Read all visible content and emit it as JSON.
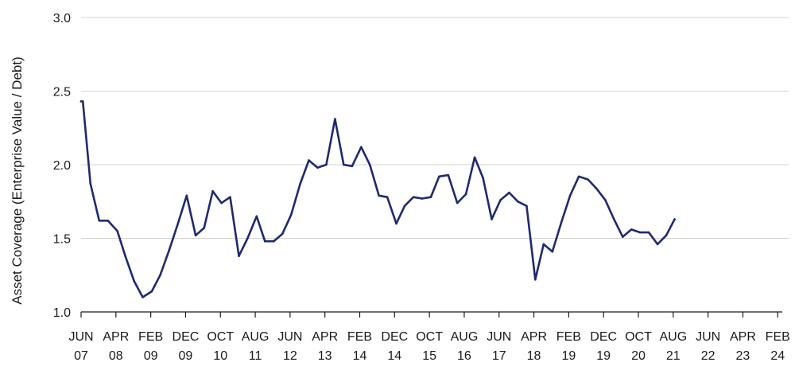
{
  "chart_data": {
    "type": "line",
    "title": "",
    "xlabel": "",
    "ylabel": "Asset Coverage (Enterprise Value / Debt)",
    "ylim": [
      1.0,
      3.0
    ],
    "yticks": [
      1.0,
      1.5,
      2.0,
      2.5,
      3.0
    ],
    "ytick_labels": [
      "1.0",
      "1.5",
      "2.0",
      "2.5",
      "3.0"
    ],
    "grid": "horizontal",
    "xtick_labels": [
      {
        "month": "JUN",
        "year": "07"
      },
      {
        "month": "APR",
        "year": "08"
      },
      {
        "month": "FEB",
        "year": "09"
      },
      {
        "month": "DEC",
        "year": "09"
      },
      {
        "month": "OCT",
        "year": "10"
      },
      {
        "month": "AUG",
        "year": "11"
      },
      {
        "month": "JUN",
        "year": "12"
      },
      {
        "month": "APR",
        "year": "13"
      },
      {
        "month": "FEB",
        "year": "14"
      },
      {
        "month": "DEC",
        "year": "14"
      },
      {
        "month": "OCT",
        "year": "15"
      },
      {
        "month": "AUG",
        "year": "16"
      },
      {
        "month": "JUN",
        "year": "17"
      },
      {
        "month": "APR",
        "year": "18"
      },
      {
        "month": "FEB",
        "year": "19"
      },
      {
        "month": "DEC",
        "year": "19"
      },
      {
        "month": "OCT",
        "year": "20"
      },
      {
        "month": "AUG",
        "year": "21"
      },
      {
        "month": "JUN",
        "year": "22"
      },
      {
        "month": "APR",
        "year": "23"
      },
      {
        "month": "FEB",
        "year": "24"
      }
    ],
    "series": [
      {
        "name": "Asset Coverage",
        "color": "#1f2a6e",
        "points": [
          [
            0.0,
            2.43
          ],
          [
            0.05,
            2.43
          ],
          [
            0.27,
            1.87
          ],
          [
            0.52,
            1.62
          ],
          [
            0.77,
            1.62
          ],
          [
            1.04,
            1.55
          ],
          [
            1.27,
            1.38
          ],
          [
            1.52,
            1.21
          ],
          [
            1.77,
            1.1
          ],
          [
            2.03,
            1.14
          ],
          [
            2.27,
            1.25
          ],
          [
            2.53,
            1.42
          ],
          [
            2.78,
            1.6
          ],
          [
            3.03,
            1.79
          ],
          [
            3.29,
            1.52
          ],
          [
            3.53,
            1.57
          ],
          [
            3.78,
            1.82
          ],
          [
            4.03,
            1.74
          ],
          [
            4.28,
            1.78
          ],
          [
            4.53,
            1.38
          ],
          [
            4.78,
            1.5
          ],
          [
            5.04,
            1.65
          ],
          [
            5.28,
            1.48
          ],
          [
            5.53,
            1.48
          ],
          [
            5.78,
            1.53
          ],
          [
            6.03,
            1.66
          ],
          [
            6.29,
            1.87
          ],
          [
            6.54,
            2.03
          ],
          [
            6.79,
            1.98
          ],
          [
            7.04,
            2.0
          ],
          [
            7.29,
            2.31
          ],
          [
            7.54,
            2.0
          ],
          [
            7.78,
            1.99
          ],
          [
            8.04,
            2.12
          ],
          [
            8.29,
            2.0
          ],
          [
            8.55,
            1.79
          ],
          [
            8.79,
            1.78
          ],
          [
            9.05,
            1.6
          ],
          [
            9.29,
            1.72
          ],
          [
            9.54,
            1.78
          ],
          [
            9.79,
            1.77
          ],
          [
            10.04,
            1.78
          ],
          [
            10.28,
            1.92
          ],
          [
            10.54,
            1.93
          ],
          [
            10.8,
            1.74
          ],
          [
            11.05,
            1.8
          ],
          [
            11.3,
            2.05
          ],
          [
            11.54,
            1.91
          ],
          [
            11.79,
            1.63
          ],
          [
            12.04,
            1.76
          ],
          [
            12.29,
            1.81
          ],
          [
            12.54,
            1.75
          ],
          [
            12.79,
            1.72
          ],
          [
            13.04,
            1.22
          ],
          [
            13.28,
            1.46
          ],
          [
            13.53,
            1.41
          ],
          [
            13.79,
            1.61
          ],
          [
            14.04,
            1.79
          ],
          [
            14.29,
            1.92
          ],
          [
            14.55,
            1.9
          ],
          [
            14.79,
            1.84
          ],
          [
            15.05,
            1.76
          ],
          [
            15.3,
            1.63
          ],
          [
            15.55,
            1.51
          ],
          [
            15.8,
            1.56
          ],
          [
            16.05,
            1.54
          ],
          [
            16.3,
            1.54
          ],
          [
            16.55,
            1.46
          ],
          [
            16.8,
            1.52
          ],
          [
            17.04,
            1.63
          ]
        ]
      }
    ]
  }
}
